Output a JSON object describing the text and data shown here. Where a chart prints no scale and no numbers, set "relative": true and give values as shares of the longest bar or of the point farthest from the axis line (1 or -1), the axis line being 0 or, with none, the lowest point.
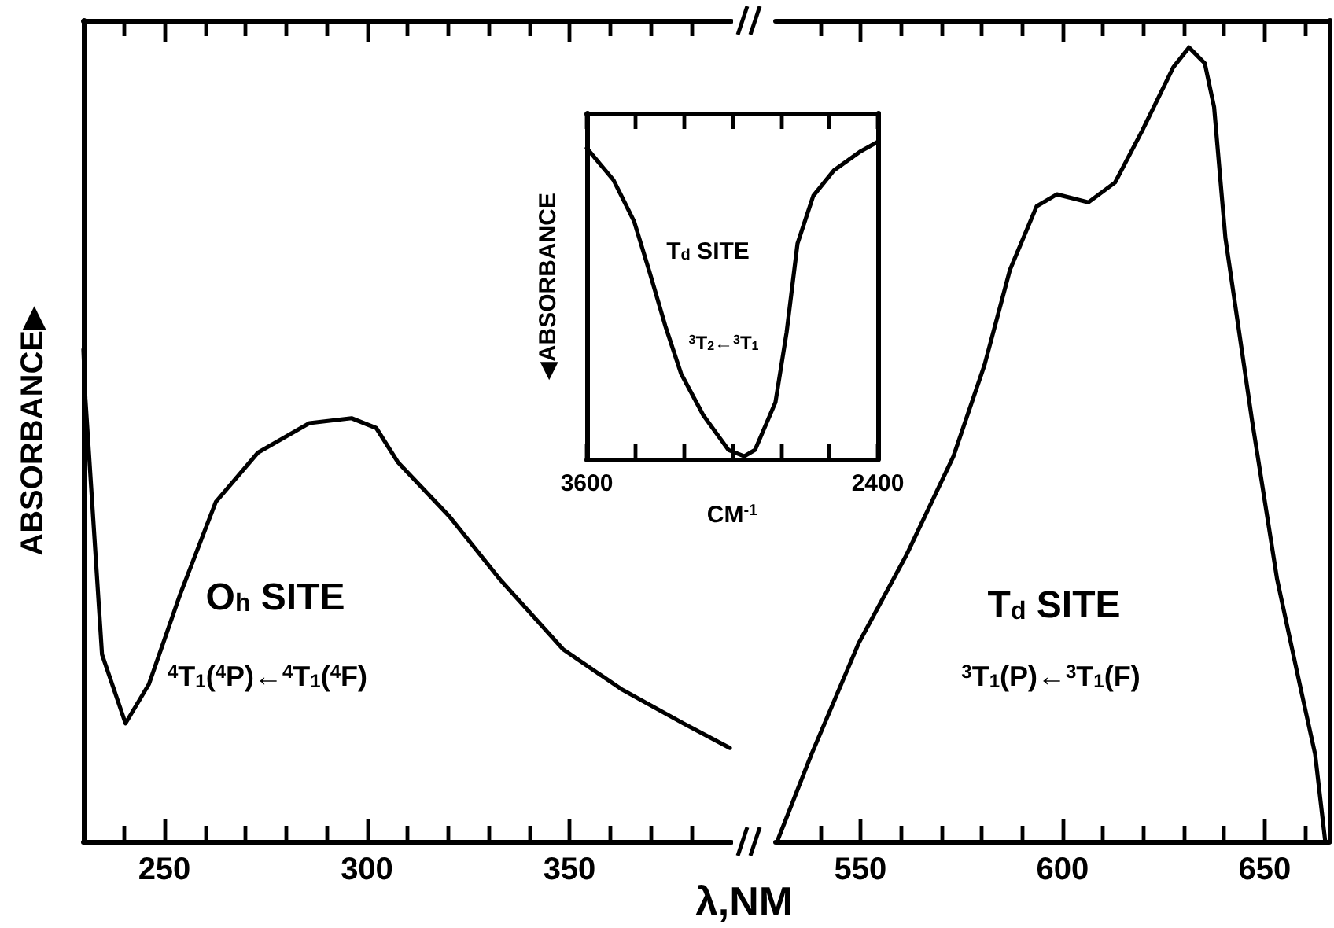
{
  "chart_data": [
    {
      "type": "line",
      "relative": true,
      "ylabel": "ABSORBANCE▶",
      "xlabel": "λ,NM",
      "color": "#000000",
      "marker": "none",
      "grid": false,
      "xlim": [
        230,
        390
      ],
      "xticks": [
        {
          "value": 240,
          "label": null
        },
        250,
        {
          "value": 260,
          "label": null
        },
        {
          "value": 270,
          "label": null
        },
        {
          "value": 280,
          "label": null
        },
        {
          "value": 290,
          "label": null
        },
        300,
        {
          "value": 310,
          "label": null
        },
        {
          "value": 320,
          "label": null
        },
        {
          "value": 330,
          "label": null
        },
        {
          "value": 340,
          "label": null
        },
        350,
        {
          "value": 360,
          "label": null
        },
        {
          "value": 370,
          "label": null
        },
        {
          "value": 380,
          "label": null
        }
      ],
      "x": [
        230,
        230.5,
        234.6,
        240.4,
        246.2,
        253.8,
        262.7,
        273.1,
        285.8,
        296.2,
        302.3,
        307.7,
        320.4,
        333.1,
        348.5,
        362.7,
        378.1,
        389.6
      ],
      "values": [
        1,
        0.9,
        0.38,
        0.24,
        0.32,
        0.5,
        0.69,
        0.79,
        0.85,
        0.86,
        0.84,
        0.77,
        0.66,
        0.53,
        0.39,
        0.31,
        0.24,
        0.19
      ],
      "annotations": [
        "O$_{h}$ SITE",
        "$^{4}$T$_{1}$($^{4}$P)←$^{4}$T$_{1}$($^{4}$F)"
      ]
    },
    {
      "type": "line",
      "relative": true,
      "color": "#000000",
      "marker": "none",
      "grid": false,
      "xlim": [
        529,
        666
      ],
      "xticks": [
        {
          "value": 540,
          "label": null
        },
        550,
        {
          "value": 560,
          "label": null
        },
        {
          "value": 570,
          "label": null
        },
        {
          "value": 580,
          "label": null
        },
        {
          "value": 590,
          "label": null
        },
        600,
        {
          "value": 610,
          "label": null
        },
        {
          "value": 620,
          "label": null
        },
        {
          "value": 630,
          "label": null
        },
        {
          "value": 640,
          "label": null
        },
        650,
        {
          "value": 660,
          "label": null
        }
      ],
      "x": [
        529.4,
        537.9,
        549.6,
        561.3,
        573,
        580.7,
        587,
        593.6,
        598.6,
        606.4,
        613,
        619.7,
        627.4,
        631.3,
        635.2,
        637.5,
        640.3,
        646.9,
        653.1,
        658.6,
        662.5,
        665
      ],
      "values": [
        0,
        0.11,
        0.25,
        0.36,
        0.485,
        0.6,
        0.72,
        0.8,
        0.815,
        0.805,
        0.83,
        0.895,
        0.975,
        1,
        0.98,
        0.925,
        0.76,
        0.53,
        0.33,
        0.2,
        0.11,
        0
      ],
      "annotations": [
        "T$_{d}$ SITE",
        "$^{3}$T$_{1}$(P)←$^{3}$T$_{1}$(F)"
      ]
    },
    {
      "type": "line",
      "relative": true,
      "ylabel": "◀ABSORBANCE",
      "xlabel": "CM$^{-1}$",
      "color": "#000000",
      "marker": "none",
      "grid": false,
      "xlim": [
        3600,
        2400
      ],
      "xticks": [
        3600,
        {
          "value": 3400,
          "label": null
        },
        {
          "value": 3200,
          "label": null
        },
        {
          "value": 3000,
          "label": null
        },
        {
          "value": 2800,
          "label": null
        },
        {
          "value": 2600,
          "label": null
        },
        2400
      ],
      "x": [
        3600,
        3490,
        3405,
        3341,
        3276,
        3211,
        3120,
        3016,
        2951,
        2906,
        2822,
        2776,
        2731,
        2666,
        2581,
        2471,
        2400
      ],
      "values": [
        0.98,
        0.88,
        0.75,
        0.59,
        0.42,
        0.27,
        0.14,
        0.03,
        0.01,
        0.03,
        0.18,
        0.4,
        0.68,
        0.83,
        0.91,
        0.97,
        1
      ],
      "annotations": [
        "T$_{d}$ SITE",
        "$^{3}$T$_{2}$←$^{3}$T$_{1}$"
      ]
    }
  ]
}
